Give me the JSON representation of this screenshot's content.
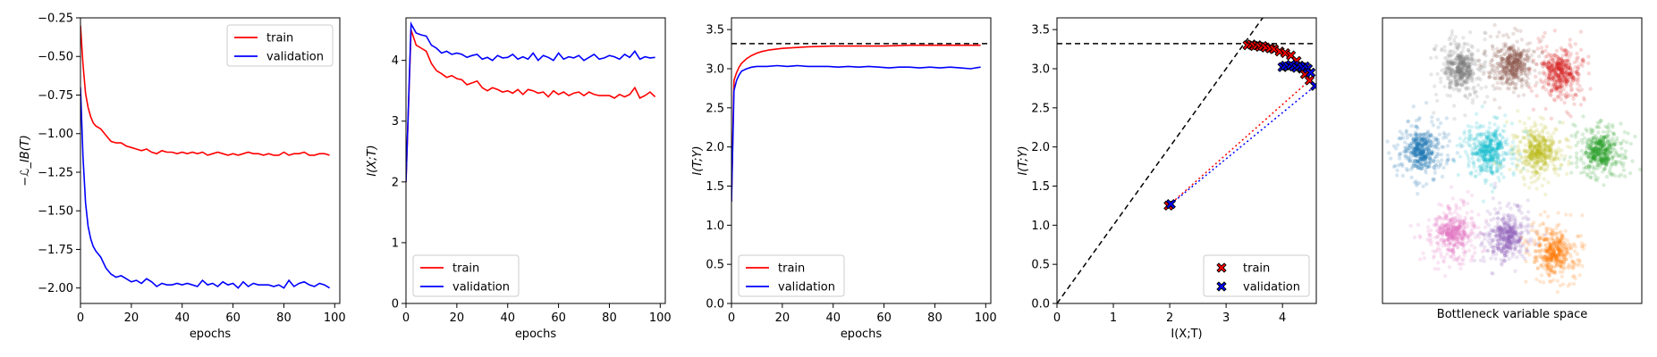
{
  "chart_data": [
    {
      "type": "line",
      "xlabel": "epochs",
      "ylabel": "−ℒ_IB(T)",
      "xlim": [
        0,
        102
      ],
      "ylim": [
        -2.1,
        -0.25
      ],
      "xticks": [
        0,
        20,
        40,
        60,
        80,
        100
      ],
      "yticks": [
        -2.0,
        -1.75,
        -1.5,
        -1.25,
        -1.0,
        -0.75,
        -0.5,
        -0.25
      ],
      "legend": "top-right",
      "series": [
        {
          "name": "train",
          "color": "#ff0000",
          "x": [
            0,
            1,
            2,
            3,
            4,
            5,
            6,
            8,
            10,
            12,
            14,
            16,
            18,
            20,
            22,
            24,
            26,
            28,
            30,
            32,
            34,
            36,
            38,
            40,
            42,
            44,
            46,
            48,
            50,
            52,
            54,
            56,
            58,
            60,
            62,
            64,
            66,
            68,
            70,
            72,
            74,
            76,
            78,
            80,
            82,
            84,
            86,
            88,
            90,
            92,
            94,
            96,
            98
          ],
          "y": [
            -0.3,
            -0.55,
            -0.74,
            -0.83,
            -0.89,
            -0.93,
            -0.95,
            -0.97,
            -1.01,
            -1.05,
            -1.06,
            -1.06,
            -1.08,
            -1.09,
            -1.1,
            -1.11,
            -1.1,
            -1.12,
            -1.13,
            -1.11,
            -1.12,
            -1.12,
            -1.13,
            -1.12,
            -1.13,
            -1.12,
            -1.13,
            -1.12,
            -1.14,
            -1.13,
            -1.12,
            -1.13,
            -1.14,
            -1.13,
            -1.14,
            -1.13,
            -1.12,
            -1.13,
            -1.13,
            -1.14,
            -1.13,
            -1.14,
            -1.14,
            -1.12,
            -1.14,
            -1.13,
            -1.13,
            -1.12,
            -1.14,
            -1.14,
            -1.13,
            -1.13,
            -1.14
          ]
        },
        {
          "name": "validation",
          "color": "#0000ff",
          "x": [
            0,
            1,
            2,
            3,
            4,
            5,
            6,
            8,
            10,
            12,
            14,
            16,
            18,
            20,
            22,
            24,
            26,
            28,
            30,
            32,
            34,
            36,
            38,
            40,
            42,
            44,
            46,
            48,
            50,
            52,
            54,
            56,
            58,
            60,
            62,
            64,
            66,
            68,
            70,
            72,
            74,
            76,
            78,
            80,
            82,
            84,
            86,
            88,
            90,
            92,
            94,
            96,
            98
          ],
          "y": [
            -0.7,
            -1.15,
            -1.45,
            -1.6,
            -1.68,
            -1.73,
            -1.76,
            -1.8,
            -1.87,
            -1.91,
            -1.93,
            -1.92,
            -1.94,
            -1.96,
            -1.95,
            -1.97,
            -1.94,
            -1.96,
            -1.99,
            -1.97,
            -1.98,
            -1.98,
            -1.97,
            -1.98,
            -1.97,
            -1.98,
            -1.99,
            -1.95,
            -1.98,
            -1.97,
            -1.99,
            -1.96,
            -1.98,
            -1.97,
            -2.0,
            -1.96,
            -1.99,
            -1.97,
            -1.98,
            -1.98,
            -1.98,
            -1.99,
            -1.98,
            -2.0,
            -1.95,
            -1.99,
            -1.97,
            -1.96,
            -1.98,
            -1.99,
            -1.97,
            -1.98,
            -2.0
          ]
        }
      ]
    },
    {
      "type": "line",
      "xlabel": "epochs",
      "ylabel": "I(X;T)",
      "xlim": [
        0,
        102
      ],
      "ylim": [
        0,
        4.7
      ],
      "xticks": [
        0,
        20,
        40,
        60,
        80,
        100
      ],
      "yticks": [
        0,
        1,
        2,
        3,
        4
      ],
      "legend": "bottom-left",
      "series": [
        {
          "name": "train",
          "color": "#ff0000",
          "x": [
            0,
            2,
            4,
            6,
            8,
            10,
            12,
            14,
            16,
            18,
            20,
            22,
            24,
            26,
            28,
            30,
            32,
            34,
            36,
            38,
            40,
            42,
            44,
            46,
            48,
            50,
            52,
            54,
            56,
            58,
            60,
            62,
            64,
            66,
            68,
            70,
            72,
            74,
            76,
            78,
            80,
            82,
            84,
            86,
            88,
            90,
            92,
            94,
            96,
            98
          ],
          "y": [
            2.0,
            4.5,
            4.25,
            4.2,
            4.15,
            3.95,
            3.83,
            3.78,
            3.72,
            3.75,
            3.7,
            3.68,
            3.6,
            3.63,
            3.66,
            3.55,
            3.5,
            3.55,
            3.52,
            3.48,
            3.5,
            3.46,
            3.52,
            3.44,
            3.52,
            3.5,
            3.46,
            3.48,
            3.4,
            3.5,
            3.44,
            3.48,
            3.42,
            3.46,
            3.48,
            3.42,
            3.48,
            3.44,
            3.42,
            3.42,
            3.42,
            3.38,
            3.44,
            3.4,
            3.44,
            3.55,
            3.38,
            3.42,
            3.48,
            3.4
          ]
        },
        {
          "name": "validation",
          "color": "#0000ff",
          "x": [
            0,
            2,
            4,
            6,
            8,
            10,
            12,
            14,
            16,
            18,
            20,
            22,
            24,
            26,
            28,
            30,
            32,
            34,
            36,
            38,
            40,
            42,
            44,
            46,
            48,
            50,
            52,
            54,
            56,
            58,
            60,
            62,
            64,
            66,
            68,
            70,
            72,
            74,
            76,
            78,
            80,
            82,
            84,
            86,
            88,
            90,
            92,
            94,
            96,
            98
          ],
          "y": [
            2.0,
            4.6,
            4.45,
            4.42,
            4.4,
            4.25,
            4.2,
            4.12,
            4.15,
            4.1,
            4.12,
            4.1,
            4.05,
            4.08,
            4.1,
            4.02,
            4.05,
            4.0,
            4.08,
            4.04,
            4.05,
            4.1,
            4.02,
            4.06,
            4.02,
            4.12,
            4.0,
            4.08,
            4.05,
            4.0,
            4.12,
            4.02,
            4.06,
            4.04,
            4.08,
            4.0,
            4.05,
            4.1,
            4.02,
            4.04,
            4.08,
            4.06,
            4.02,
            4.1,
            4.05,
            4.15,
            4.02,
            4.06,
            4.04,
            4.05
          ]
        }
      ]
    },
    {
      "type": "line",
      "xlabel": "epochs",
      "ylabel": "I(T;Y)",
      "xlim": [
        0,
        102
      ],
      "ylim": [
        0,
        3.65
      ],
      "xticks": [
        0,
        20,
        40,
        60,
        80,
        100
      ],
      "yticks": [
        0.0,
        0.5,
        1.0,
        1.5,
        2.0,
        2.5,
        3.0,
        3.5
      ],
      "legend": "bottom-left",
      "hline": 3.32,
      "series": [
        {
          "name": "train",
          "color": "#ff0000",
          "x": [
            0,
            1,
            2,
            3,
            4,
            6,
            8,
            10,
            12,
            15,
            20,
            25,
            30,
            40,
            50,
            60,
            70,
            80,
            90,
            98
          ],
          "y": [
            1.3,
            2.85,
            2.95,
            3.02,
            3.07,
            3.13,
            3.17,
            3.2,
            3.22,
            3.24,
            3.26,
            3.27,
            3.28,
            3.29,
            3.29,
            3.29,
            3.3,
            3.3,
            3.3,
            3.3
          ]
        },
        {
          "name": "validation",
          "color": "#0000ff",
          "x": [
            0,
            1,
            2,
            3,
            4,
            6,
            8,
            10,
            14,
            18,
            22,
            26,
            30,
            34,
            38,
            42,
            46,
            50,
            54,
            58,
            62,
            66,
            70,
            74,
            78,
            82,
            86,
            90,
            94,
            98
          ],
          "y": [
            1.3,
            2.72,
            2.85,
            2.92,
            2.97,
            3.0,
            3.02,
            3.03,
            3.03,
            3.04,
            3.03,
            3.04,
            3.03,
            3.03,
            3.03,
            3.02,
            3.03,
            3.02,
            3.03,
            3.02,
            3.01,
            3.02,
            3.02,
            3.01,
            3.02,
            3.01,
            3.02,
            3.01,
            3.0,
            3.02
          ]
        }
      ]
    },
    {
      "type": "scatter",
      "xlabel": "I(X;T)",
      "ylabel": "I(T;Y)",
      "xlim": [
        0,
        4.6
      ],
      "ylim": [
        0,
        3.65
      ],
      "xticks": [
        0,
        1,
        2,
        3,
        4
      ],
      "yticks": [
        0.0,
        0.5,
        1.0,
        1.5,
        2.0,
        2.5,
        3.0,
        3.5
      ],
      "legend": "bottom-right",
      "hline": 3.32,
      "diagonal": true,
      "series": [
        {
          "name": "train",
          "color": "#ff0000",
          "x": [
            1.98,
            3.38,
            3.45,
            3.5,
            3.55,
            3.6,
            3.65,
            3.7,
            3.78,
            3.85,
            3.95,
            4.05,
            4.15,
            4.25,
            4.35,
            4.4,
            4.48
          ],
          "y": [
            1.25,
            3.3,
            3.31,
            3.29,
            3.3,
            3.28,
            3.29,
            3.27,
            3.26,
            3.25,
            3.22,
            3.2,
            3.17,
            3.1,
            3.0,
            2.93,
            2.85
          ]
        },
        {
          "name": "validation",
          "color": "#0000ff",
          "x": [
            2.02,
            4.0,
            4.05,
            4.1,
            4.15,
            4.2,
            4.25,
            4.3,
            4.35,
            4.4,
            4.45,
            4.5,
            4.58
          ],
          "y": [
            1.27,
            3.02,
            3.04,
            3.03,
            3.05,
            3.03,
            3.01,
            3.04,
            3.02,
            3.03,
            3.0,
            2.95,
            2.78
          ]
        }
      ]
    },
    {
      "type": "scatter",
      "xlabel": "Bottleneck variable space",
      "clusters": [
        {
          "color": "#7f7f7f",
          "cx": 1.4,
          "cy": 3.0
        },
        {
          "color": "#8c564b",
          "cx": 2.3,
          "cy": 3.05
        },
        {
          "color": "#d62728",
          "cx": 3.15,
          "cy": 2.95
        },
        {
          "color": "#1f77b4",
          "cx": 0.7,
          "cy": 1.95
        },
        {
          "color": "#17becf",
          "cx": 1.9,
          "cy": 1.95
        },
        {
          "color": "#bcbd22",
          "cx": 2.75,
          "cy": 1.95
        },
        {
          "color": "#2ca02c",
          "cx": 3.85,
          "cy": 1.95
        },
        {
          "color": "#e377c2",
          "cx": 1.25,
          "cy": 0.9
        },
        {
          "color": "#9467bd",
          "cx": 2.2,
          "cy": 0.85
        },
        {
          "color": "#ff7f0e",
          "cx": 3.05,
          "cy": 0.65
        }
      ]
    }
  ]
}
